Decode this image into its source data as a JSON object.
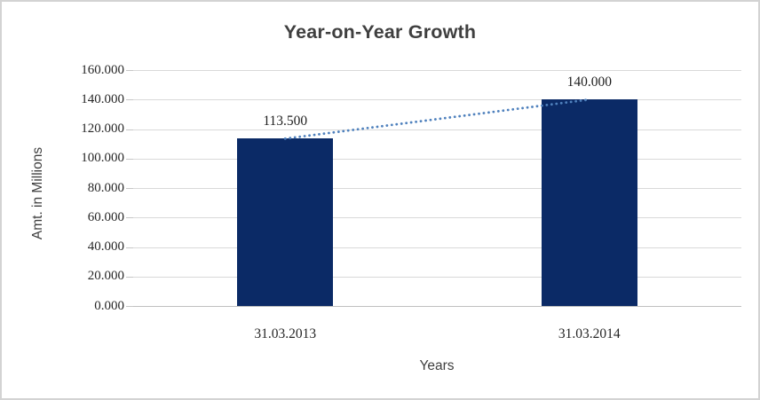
{
  "window": {
    "background_color": "#ffffff",
    "border_color": "#d3d3d3"
  },
  "chart_data": {
    "type": "bar",
    "title": "Year-on-Year Growth",
    "xlabel": "Years",
    "ylabel": "Amt. in Millions",
    "categories": [
      "31.03.2013",
      "31.03.2014"
    ],
    "values": [
      113500,
      140000
    ],
    "value_labels": [
      "113.500",
      "140.000"
    ],
    "ylim": [
      0,
      160000
    ],
    "y_tick_values": [
      0,
      20000,
      40000,
      60000,
      80000,
      100000,
      120000,
      140000,
      160000
    ],
    "y_tick_labels": [
      "0.000",
      "20.000",
      "40.000",
      "60.000",
      "80.000",
      "100.000",
      "120.000",
      "140.000",
      "160.000"
    ],
    "grid": "horizontal",
    "legend": "none",
    "bar_color": "#0b2a66",
    "gridline_color": "#d9d9d9",
    "axis_line_color": "#bfbfbf",
    "title_color": "#3f3f3f",
    "text_color": "#262626",
    "trendline": {
      "type": "linear",
      "style": "dotted",
      "color": "#4f81bd",
      "from_value": 113500,
      "to_value": 140000
    }
  }
}
